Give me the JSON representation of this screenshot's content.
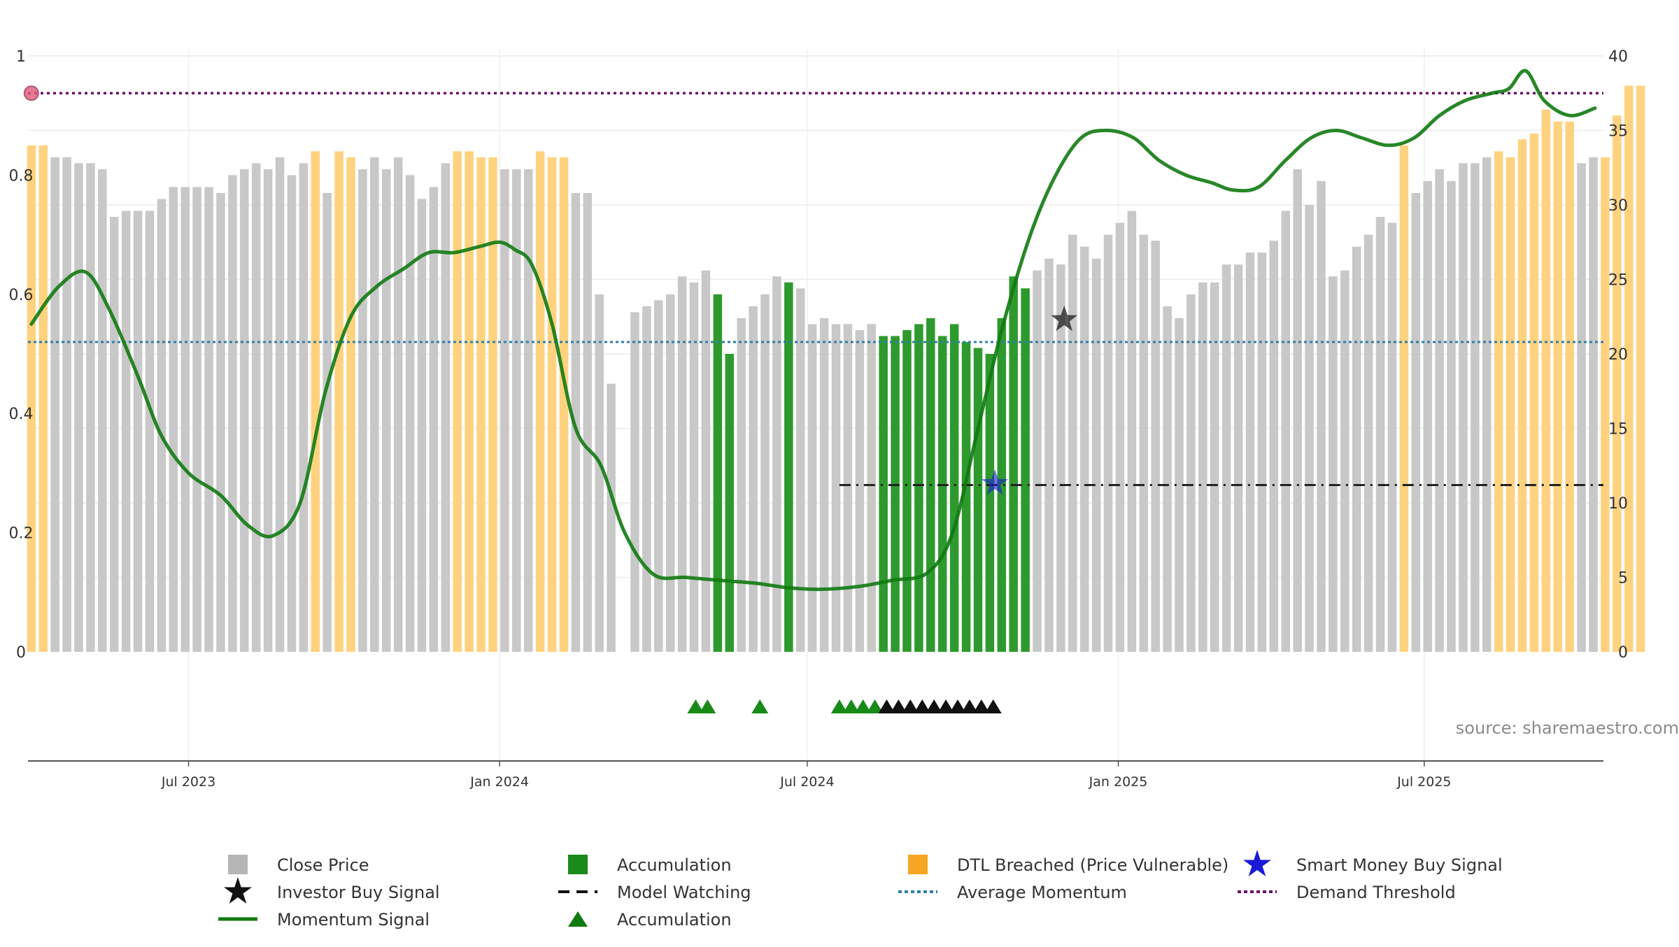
{
  "source_note": "source: sharemaestro.com",
  "colors": {
    "close": "#c8c8c8",
    "accumulation": "#2e9a2e",
    "dtl": "#ffd27f",
    "momentum": "#117a11",
    "avg_momentum": "#2f7fa8",
    "demand": "#6b0f6b",
    "watching": "#222222",
    "smart_money": "#1a1ad6",
    "investor": "#111111",
    "triangle_green": "#178a17",
    "triangle_black": "#111111"
  },
  "chart_data": {
    "type": "bar",
    "x_type": "date",
    "xlim": [
      "2023-03-28",
      "2025-10-15"
    ],
    "x_ticks": [
      "2023-07-01",
      "2024-01-01",
      "2024-07-01",
      "2025-01-01",
      "2025-07-01"
    ],
    "x_tick_labels": [
      "Jul 2023",
      "Jan 2024",
      "Jul 2024",
      "Jan 2025",
      "Jul 2025"
    ],
    "y_left": {
      "range": [
        0,
        1
      ],
      "ticks": [
        0,
        0.2,
        0.4,
        0.6,
        0.8,
        1
      ],
      "tick_labels": [
        "0",
        "0.2",
        "0.4",
        "0.6",
        "0.8",
        "1"
      ]
    },
    "y_right": {
      "range": [
        0,
        40
      ],
      "ticks": [
        0,
        5,
        10,
        15,
        20,
        25,
        30,
        35,
        40
      ],
      "tick_labels": [
        "0",
        "5",
        "10",
        "15",
        "20",
        "25",
        "30",
        "35",
        "40"
      ]
    },
    "grid": true,
    "legend_position": "bottom",
    "bar_start": "2023-03-30",
    "bar_step_days": 7,
    "bars": {
      "values": [
        0.85,
        0.85,
        0.83,
        0.83,
        0.82,
        0.82,
        0.81,
        0.73,
        0.74,
        0.74,
        0.74,
        0.76,
        0.78,
        0.78,
        0.78,
        0.78,
        0.77,
        0.8,
        0.81,
        0.82,
        0.81,
        0.83,
        0.8,
        0.82,
        0.84,
        0.77,
        0.84,
        0.83,
        0.81,
        0.83,
        0.81,
        0.83,
        0.8,
        0.76,
        0.78,
        0.82,
        0.84,
        0.84,
        0.83,
        0.83,
        0.81,
        0.81,
        0.81,
        0.84,
        0.83,
        0.83,
        0.77,
        0.77,
        0.6,
        0.45,
        0.0,
        0.57,
        0.58,
        0.59,
        0.6,
        0.63,
        0.62,
        0.64,
        0.6,
        0.5,
        0.56,
        0.58,
        0.6,
        0.63,
        0.62,
        0.61,
        0.55,
        0.56,
        0.55,
        0.55,
        0.54,
        0.55,
        0.53,
        0.53,
        0.54,
        0.55,
        0.56,
        0.53,
        0.55,
        0.52,
        0.51,
        0.5,
        0.56,
        0.63,
        0.61,
        0.64,
        0.66,
        0.65,
        0.7,
        0.68,
        0.66,
        0.7,
        0.72,
        0.74,
        0.7,
        0.69,
        0.58,
        0.56,
        0.6,
        0.62,
        0.62,
        0.65,
        0.65,
        0.67,
        0.67,
        0.69,
        0.74,
        0.81,
        0.75,
        0.79,
        0.63,
        0.64,
        0.68,
        0.7,
        0.73,
        0.72,
        0.85,
        0.77,
        0.79,
        0.81,
        0.79,
        0.82,
        0.82,
        0.83,
        0.84,
        0.83,
        0.86,
        0.87,
        0.91,
        0.89,
        0.89,
        0.82,
        0.83,
        0.83,
        0.9,
        0.95,
        0.95
      ],
      "status": [
        "D",
        "D",
        "C",
        "C",
        "C",
        "C",
        "C",
        "C",
        "C",
        "C",
        "C",
        "C",
        "C",
        "C",
        "C",
        "C",
        "C",
        "C",
        "C",
        "C",
        "C",
        "C",
        "C",
        "C",
        "D",
        "C",
        "D",
        "D",
        "C",
        "C",
        "C",
        "C",
        "C",
        "C",
        "C",
        "C",
        "D",
        "D",
        "D",
        "D",
        "C",
        "C",
        "C",
        "D",
        "D",
        "D",
        "C",
        "C",
        "C",
        "C",
        "C",
        "C",
        "C",
        "C",
        "C",
        "C",
        "C",
        "C",
        "A",
        "A",
        "C",
        "C",
        "C",
        "C",
        "A",
        "C",
        "C",
        "C",
        "C",
        "C",
        "C",
        "C",
        "A",
        "A",
        "A",
        "A",
        "A",
        "A",
        "A",
        "A",
        "A",
        "A",
        "A",
        "A",
        "A",
        "C",
        "C",
        "C",
        "C",
        "C",
        "C",
        "C",
        "C",
        "C",
        "C",
        "C",
        "C",
        "C",
        "C",
        "C",
        "C",
        "C",
        "C",
        "C",
        "C",
        "C",
        "C",
        "C",
        "C",
        "C",
        "C",
        "C",
        "C",
        "C",
        "C",
        "C",
        "D",
        "C",
        "C",
        "C",
        "C",
        "C",
        "C",
        "C",
        "D",
        "D",
        "D",
        "D",
        "D",
        "D",
        "D",
        "C",
        "C",
        "D",
        "D",
        "D",
        "D"
      ]
    },
    "momentum": {
      "x": [
        "2023-03-30",
        "2023-04-15",
        "2023-05-01",
        "2023-05-15",
        "2023-06-01",
        "2023-06-15",
        "2023-07-01",
        "2023-07-20",
        "2023-08-05",
        "2023-08-20",
        "2023-09-05",
        "2023-09-20",
        "2023-10-05",
        "2023-10-20",
        "2023-11-05",
        "2023-11-20",
        "2023-12-05",
        "2023-12-20",
        "2024-01-01",
        "2024-01-10",
        "2024-01-20",
        "2024-02-01",
        "2024-02-15",
        "2024-03-01",
        "2024-03-15",
        "2024-04-01",
        "2024-04-20",
        "2024-05-10",
        "2024-06-01",
        "2024-06-20",
        "2024-07-10",
        "2024-08-01",
        "2024-08-20",
        "2024-09-10",
        "2024-09-25",
        "2024-10-10",
        "2024-10-25",
        "2024-11-10",
        "2024-11-25",
        "2024-12-10",
        "2024-12-25",
        "2025-01-10",
        "2025-01-25",
        "2025-02-10",
        "2025-02-25",
        "2025-03-10",
        "2025-03-25",
        "2025-04-10",
        "2025-04-25",
        "2025-05-10",
        "2025-05-25",
        "2025-06-10",
        "2025-06-25",
        "2025-07-10",
        "2025-07-25",
        "2025-08-10",
        "2025-08-20",
        "2025-08-30",
        "2025-09-10",
        "2025-09-25",
        "2025-10-10"
      ],
      "y": [
        22,
        24.5,
        25.5,
        23,
        18.5,
        14.5,
        12,
        10.5,
        8.5,
        7.8,
        10,
        17.5,
        22.5,
        24.5,
        25.7,
        26.8,
        26.8,
        27.2,
        27.5,
        27,
        26,
        22,
        15,
        12.5,
        8,
        5.2,
        5,
        4.8,
        4.6,
        4.3,
        4.2,
        4.4,
        4.8,
        5.3,
        8,
        15,
        22,
        28,
        32,
        34.5,
        35,
        34.5,
        33,
        32,
        31.5,
        31,
        31.2,
        33,
        34.5,
        35,
        34.5,
        34,
        34.5,
        36,
        37,
        37.5,
        37.8,
        39,
        37,
        36,
        36.5
      ]
    },
    "avg_momentum": 20.8,
    "demand_threshold": 37.5,
    "model_watching": {
      "start": "2024-07-20",
      "end": "2025-10-15",
      "value": 11.2
    },
    "smart_money_buy": [
      {
        "x": "2024-10-20",
        "y": 11.3
      }
    ],
    "investor_buy": [
      {
        "x": "2024-11-30",
        "y": 22.3
      }
    ],
    "accumulation_triangles_green": [
      "2024-04-26",
      "2024-05-03",
      "2024-06-03",
      "2024-07-20",
      "2024-07-27",
      "2024-08-03",
      "2024-08-10"
    ],
    "accumulation_triangles_black": [
      "2024-08-17",
      "2024-08-24",
      "2024-08-31",
      "2024-09-07",
      "2024-09-14",
      "2024-09-21",
      "2024-09-28",
      "2024-10-05",
      "2024-10-12",
      "2024-10-19"
    ],
    "start_marker": {
      "x": "2023-03-30",
      "y": 37.5
    }
  },
  "legend": [
    {
      "label": "Close Price",
      "symbol": "square",
      "color": "#b5b5b5"
    },
    {
      "label": "Accumulation",
      "symbol": "square",
      "color": "#1a8a1a"
    },
    {
      "label": "DTL Breached (Price Vulnerable)",
      "symbol": "square",
      "color": "#f5a623"
    },
    {
      "label": "Smart Money Buy Signal",
      "symbol": "star",
      "color": "#1a1ad6"
    },
    {
      "label": "Investor Buy Signal",
      "symbol": "star",
      "color": "#111111"
    },
    {
      "label": "Model Watching",
      "symbol": "dash",
      "color": "#111111"
    },
    {
      "label": "Average Momentum",
      "symbol": "dotted",
      "color": "#2f7fa8"
    },
    {
      "label": "Demand Threshold",
      "symbol": "dotted",
      "color": "#6b0f6b"
    },
    {
      "label": "Momentum Signal",
      "symbol": "line",
      "color": "#117a11"
    },
    {
      "label": "Accumulation",
      "symbol": "triangle",
      "color": "#117a11"
    }
  ]
}
